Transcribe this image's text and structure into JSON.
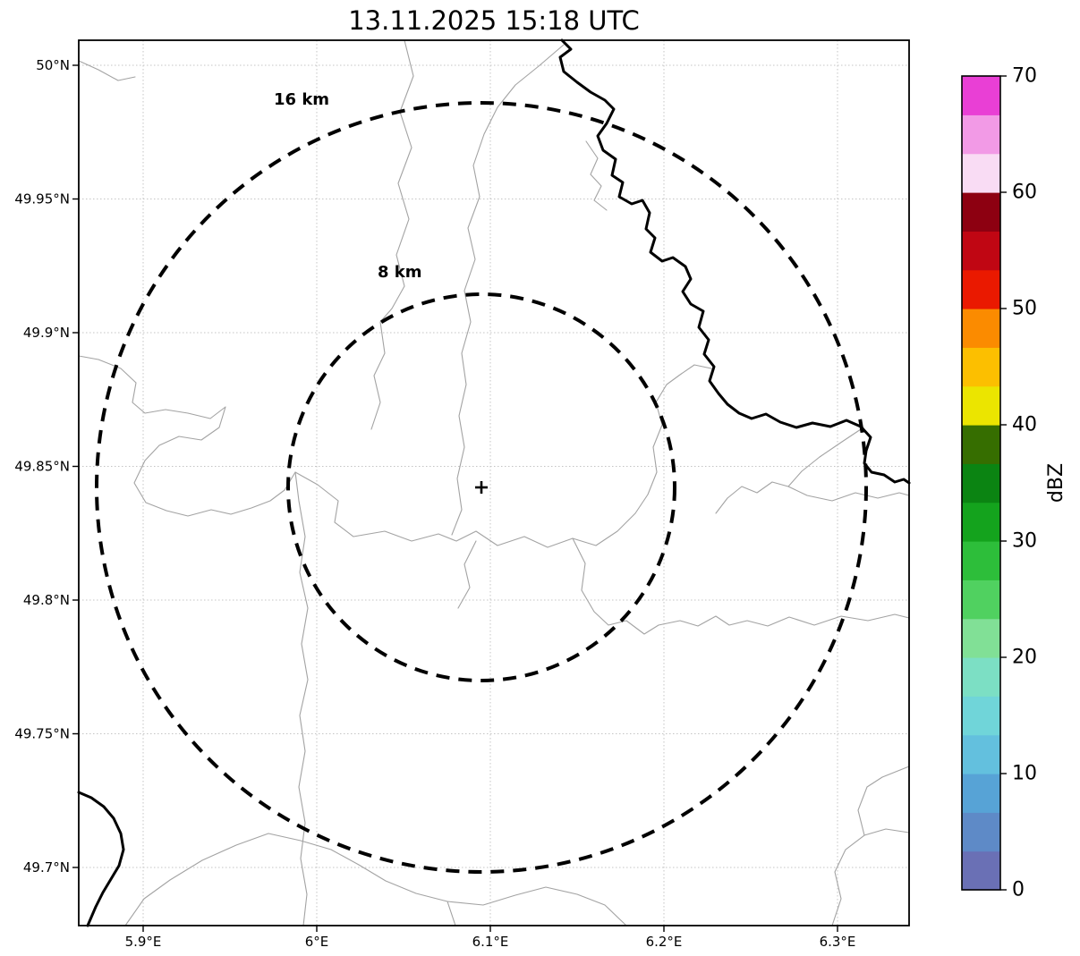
{
  "title": "13.11.2025 15:18 UTC",
  "map": {
    "range_rings": [
      {
        "label": "16 km",
        "radius_km": 16
      },
      {
        "label": "8 km",
        "radius_km": 8
      }
    ],
    "center_marker": "plus-marker"
  },
  "axes": {
    "lat_tick_labels": [
      "50°N",
      "49.95°N",
      "49.9°N",
      "49.85°N",
      "49.8°N",
      "49.75°N",
      "49.7°N"
    ],
    "lon_tick_labels": [
      "5.9°E",
      "6°E",
      "6.1°E",
      "6.2°E",
      "6.3°E"
    ]
  },
  "colorbar": {
    "label": "dBZ",
    "tick_labels": [
      "0",
      "10",
      "20",
      "30",
      "40",
      "50",
      "60",
      "70"
    ],
    "min_value": 0,
    "max_value": 70,
    "segment_colors_bottom_to_top": [
      "#6a70b5",
      "#5e8ac7",
      "#57a3d6",
      "#63c0de",
      "#70d5d9",
      "#7cdfc4",
      "#81e096",
      "#50d160",
      "#2dbe3a",
      "#14a31d",
      "#0b8412",
      "#366e00",
      "#ebe500",
      "#fcbf00",
      "#fb8b00",
      "#ea1900",
      "#c00613",
      "#8d0011",
      "#f9dcf4",
      "#f29ae6",
      "#e93fd5"
    ]
  },
  "colors": {
    "background": "#ffffff",
    "grid": "#c4c4c4",
    "boundary_lines": "#a3a3a3",
    "river_border": "#000000",
    "range_ring": "#000000"
  },
  "chart_data": {
    "type": "heatmap",
    "title": "13.11.2025 15:18 UTC",
    "value_label": "dBZ",
    "value_range": [
      0,
      70
    ],
    "x_axis": {
      "ticks_deg_e": [
        5.9,
        6.0,
        6.1,
        6.2,
        6.3
      ],
      "range_deg_e": [
        5.86,
        6.34
      ]
    },
    "y_axis": {
      "ticks_deg_n": [
        50.0,
        49.95,
        49.9,
        49.85,
        49.8,
        49.75,
        49.7
      ],
      "range_deg_n": [
        49.68,
        50.01
      ]
    },
    "radar_center": {
      "lon_deg_e": 6.095,
      "lat_deg_n": 49.842
    },
    "range_rings_km": [
      8,
      16
    ],
    "grid": true,
    "legend_position": "right-colorbar",
    "radar_echoes": []
  }
}
